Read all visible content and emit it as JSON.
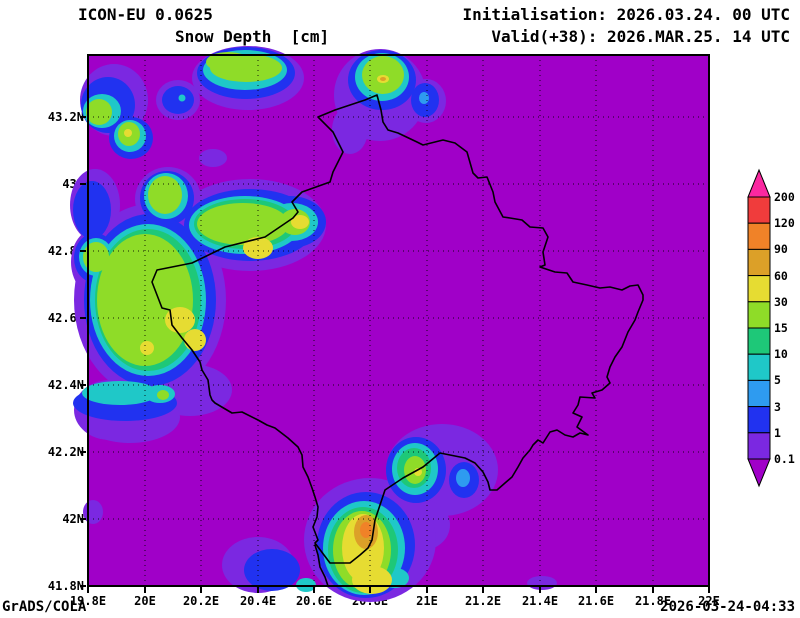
{
  "header": {
    "model": "ICON-EU 0.0625",
    "field_title": "Snow Depth  [cm]",
    "initialisation": "Initialisation: 2026.03.24. 00 UTC",
    "valid": "Valid(+38): 2026.MAR.25. 14 UTC"
  },
  "map": {
    "region": "Kosovo",
    "y_ticks": [
      "43.2N",
      "43N",
      "42.8N",
      "42.6N",
      "42.4N",
      "42.2N",
      "42N",
      "41.8N"
    ],
    "x_ticks": [
      "19.8E",
      "20E",
      "20.2E",
      "20.4E",
      "20.6E",
      "20.8E",
      "21E",
      "21.2E",
      "21.4E",
      "21.6E",
      "21.8E",
      "22E"
    ]
  },
  "colorbar": {
    "unit": "cm",
    "labels": [
      "200",
      "120",
      "90",
      "60",
      "30",
      "15",
      "10",
      "5",
      "3",
      "1",
      "0.1"
    ]
  },
  "palette": {
    "below_min": "#A000C8",
    "v0_1": "#7B28E1",
    "v1": "#2132F0",
    "v3": "#2E9BF0",
    "v5": "#1FC8C8",
    "v10": "#1EC878",
    "v15": "#8FDC28",
    "v30": "#E6DC32",
    "v60": "#DCA028",
    "v90": "#F08228",
    "v120": "#F03C3C",
    "above_max": "#FA28A0"
  },
  "footer": {
    "credit": "GrADS/COLA",
    "generated": "2026-03-24-04:33"
  }
}
